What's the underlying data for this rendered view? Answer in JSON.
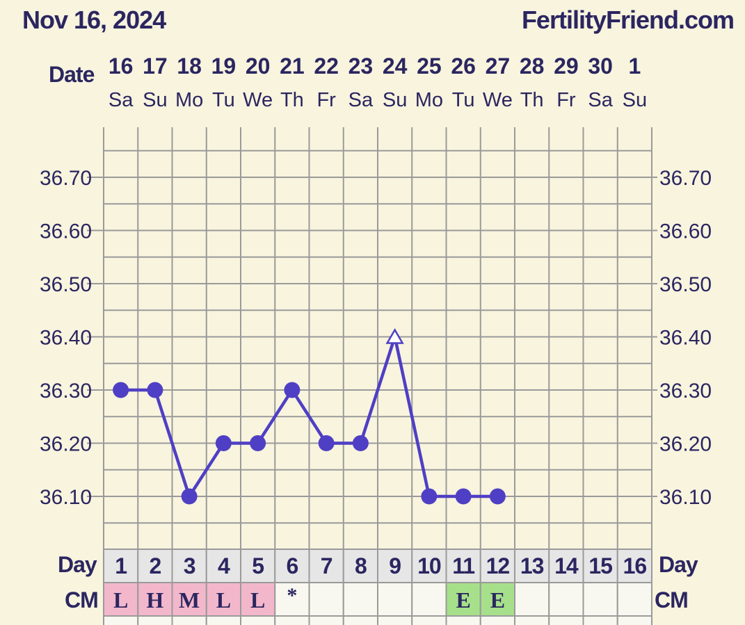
{
  "header": {
    "date": "Nov 16, 2024",
    "site": "FertilityFriend.com"
  },
  "labels": {
    "date_row": "Date",
    "day_row": "Day",
    "cm_row": "CM"
  },
  "colors": {
    "background": "#f8f4de",
    "grid": "#9a9a9a",
    "line": "#4f3fc4",
    "text": "#2b2660",
    "row_bg": "#e6e6e6",
    "cm_pink": "#f3b7cc",
    "cm_green": "#a6e08a"
  },
  "chart_data": {
    "type": "line",
    "dates": [
      "16",
      "17",
      "18",
      "19",
      "20",
      "21",
      "22",
      "23",
      "24",
      "25",
      "26",
      "27",
      "28",
      "29",
      "30",
      "1"
    ],
    "weekdays": [
      "Sa",
      "Su",
      "Mo",
      "Tu",
      "We",
      "Th",
      "Fr",
      "Sa",
      "Su",
      "Mo",
      "Tu",
      "We",
      "Th",
      "Fr",
      "Sa",
      "Su"
    ],
    "cycle_days": [
      "1",
      "2",
      "3",
      "4",
      "5",
      "6",
      "7",
      "8",
      "9",
      "10",
      "11",
      "12",
      "13",
      "14",
      "15",
      "16"
    ],
    "y_tick_labels": [
      "36.70",
      "36.60",
      "36.50",
      "36.40",
      "36.30",
      "36.20",
      "36.10"
    ],
    "ylim": [
      36.0,
      36.8
    ],
    "grid": true,
    "series": [
      {
        "values": [
          36.3,
          36.3,
          36.1,
          36.2,
          36.2,
          36.3,
          36.2,
          36.2,
          36.4,
          36.1,
          36.1,
          36.1,
          null,
          null,
          null,
          null
        ],
        "markers": [
          "dot",
          "dot",
          "dot",
          "dot",
          "dot",
          "dot",
          "dot",
          "dot",
          "open-triangle",
          "dot",
          "dot",
          "dot"
        ]
      }
    ],
    "cervical_mucus": [
      "L",
      "H",
      "M",
      "L",
      "L",
      "*",
      "",
      "",
      "",
      "",
      "E",
      "E",
      "",
      "",
      "",
      ""
    ],
    "cervical_mucus_colors": [
      "pink",
      "pink",
      "pink",
      "pink",
      "pink",
      "none",
      "none",
      "none",
      "none",
      "none",
      "green",
      "green",
      "none",
      "none",
      "none",
      "none"
    ]
  }
}
